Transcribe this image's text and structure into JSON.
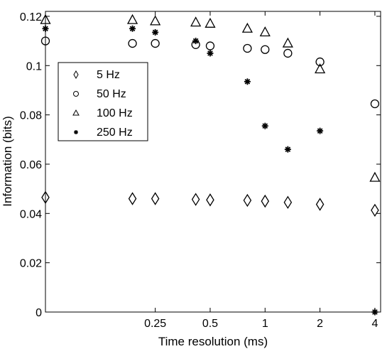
{
  "chart_data": {
    "type": "scatter",
    "xlabel": "Time resolution (ms)",
    "ylabel": "Information (bits)",
    "x_scale": "log2",
    "xlim": [
      0.0625,
      4.3
    ],
    "ylim": [
      0,
      0.122
    ],
    "x_ticks": [
      0.25,
      0.5,
      1,
      2,
      4
    ],
    "x_tick_labels": [
      "0.25",
      "0.5",
      "1",
      "2",
      "4"
    ],
    "y_ticks": [
      0,
      0.02,
      0.04,
      0.06,
      0.08,
      0.1,
      0.12
    ],
    "y_tick_labels": [
      "0",
      "0.02",
      "0.04",
      "0.06",
      "0.08",
      "0.1",
      "0.12"
    ],
    "legend_position": "upper-left",
    "series": [
      {
        "name": "5 Hz",
        "marker": "diamond",
        "x": [
          0.0625,
          0.1875,
          0.25,
          0.4167,
          0.5,
          0.8,
          1,
          1.333,
          2,
          4
        ],
        "y": [
          0.0465,
          0.046,
          0.046,
          0.0457,
          0.0455,
          0.0453,
          0.045,
          0.0445,
          0.0437,
          0.0413
        ]
      },
      {
        "name": "50 Hz",
        "marker": "circle",
        "x": [
          0.0625,
          0.1875,
          0.25,
          0.4167,
          0.5,
          0.8,
          1,
          1.333,
          2,
          4
        ],
        "y": [
          0.11,
          0.109,
          0.109,
          0.1085,
          0.108,
          0.107,
          0.1065,
          0.105,
          0.1015,
          0.0845
        ]
      },
      {
        "name": "100 Hz",
        "marker": "triangle",
        "x": [
          0.0625,
          0.1875,
          0.25,
          0.4167,
          0.5,
          0.8,
          1,
          1.333,
          2,
          4
        ],
        "y": [
          0.1185,
          0.1185,
          0.118,
          0.1175,
          0.117,
          0.115,
          0.1135,
          0.109,
          0.0985,
          0.0545
        ]
      },
      {
        "name": "250 Hz",
        "marker": "star",
        "x": [
          0.0625,
          0.1875,
          0.25,
          0.4167,
          0.5,
          0.8,
          1,
          1.333,
          2,
          4
        ],
        "y": [
          0.115,
          0.115,
          0.1135,
          0.11,
          0.105,
          0.0935,
          0.0755,
          0.066,
          0.0735,
          0.0
        ]
      }
    ]
  }
}
